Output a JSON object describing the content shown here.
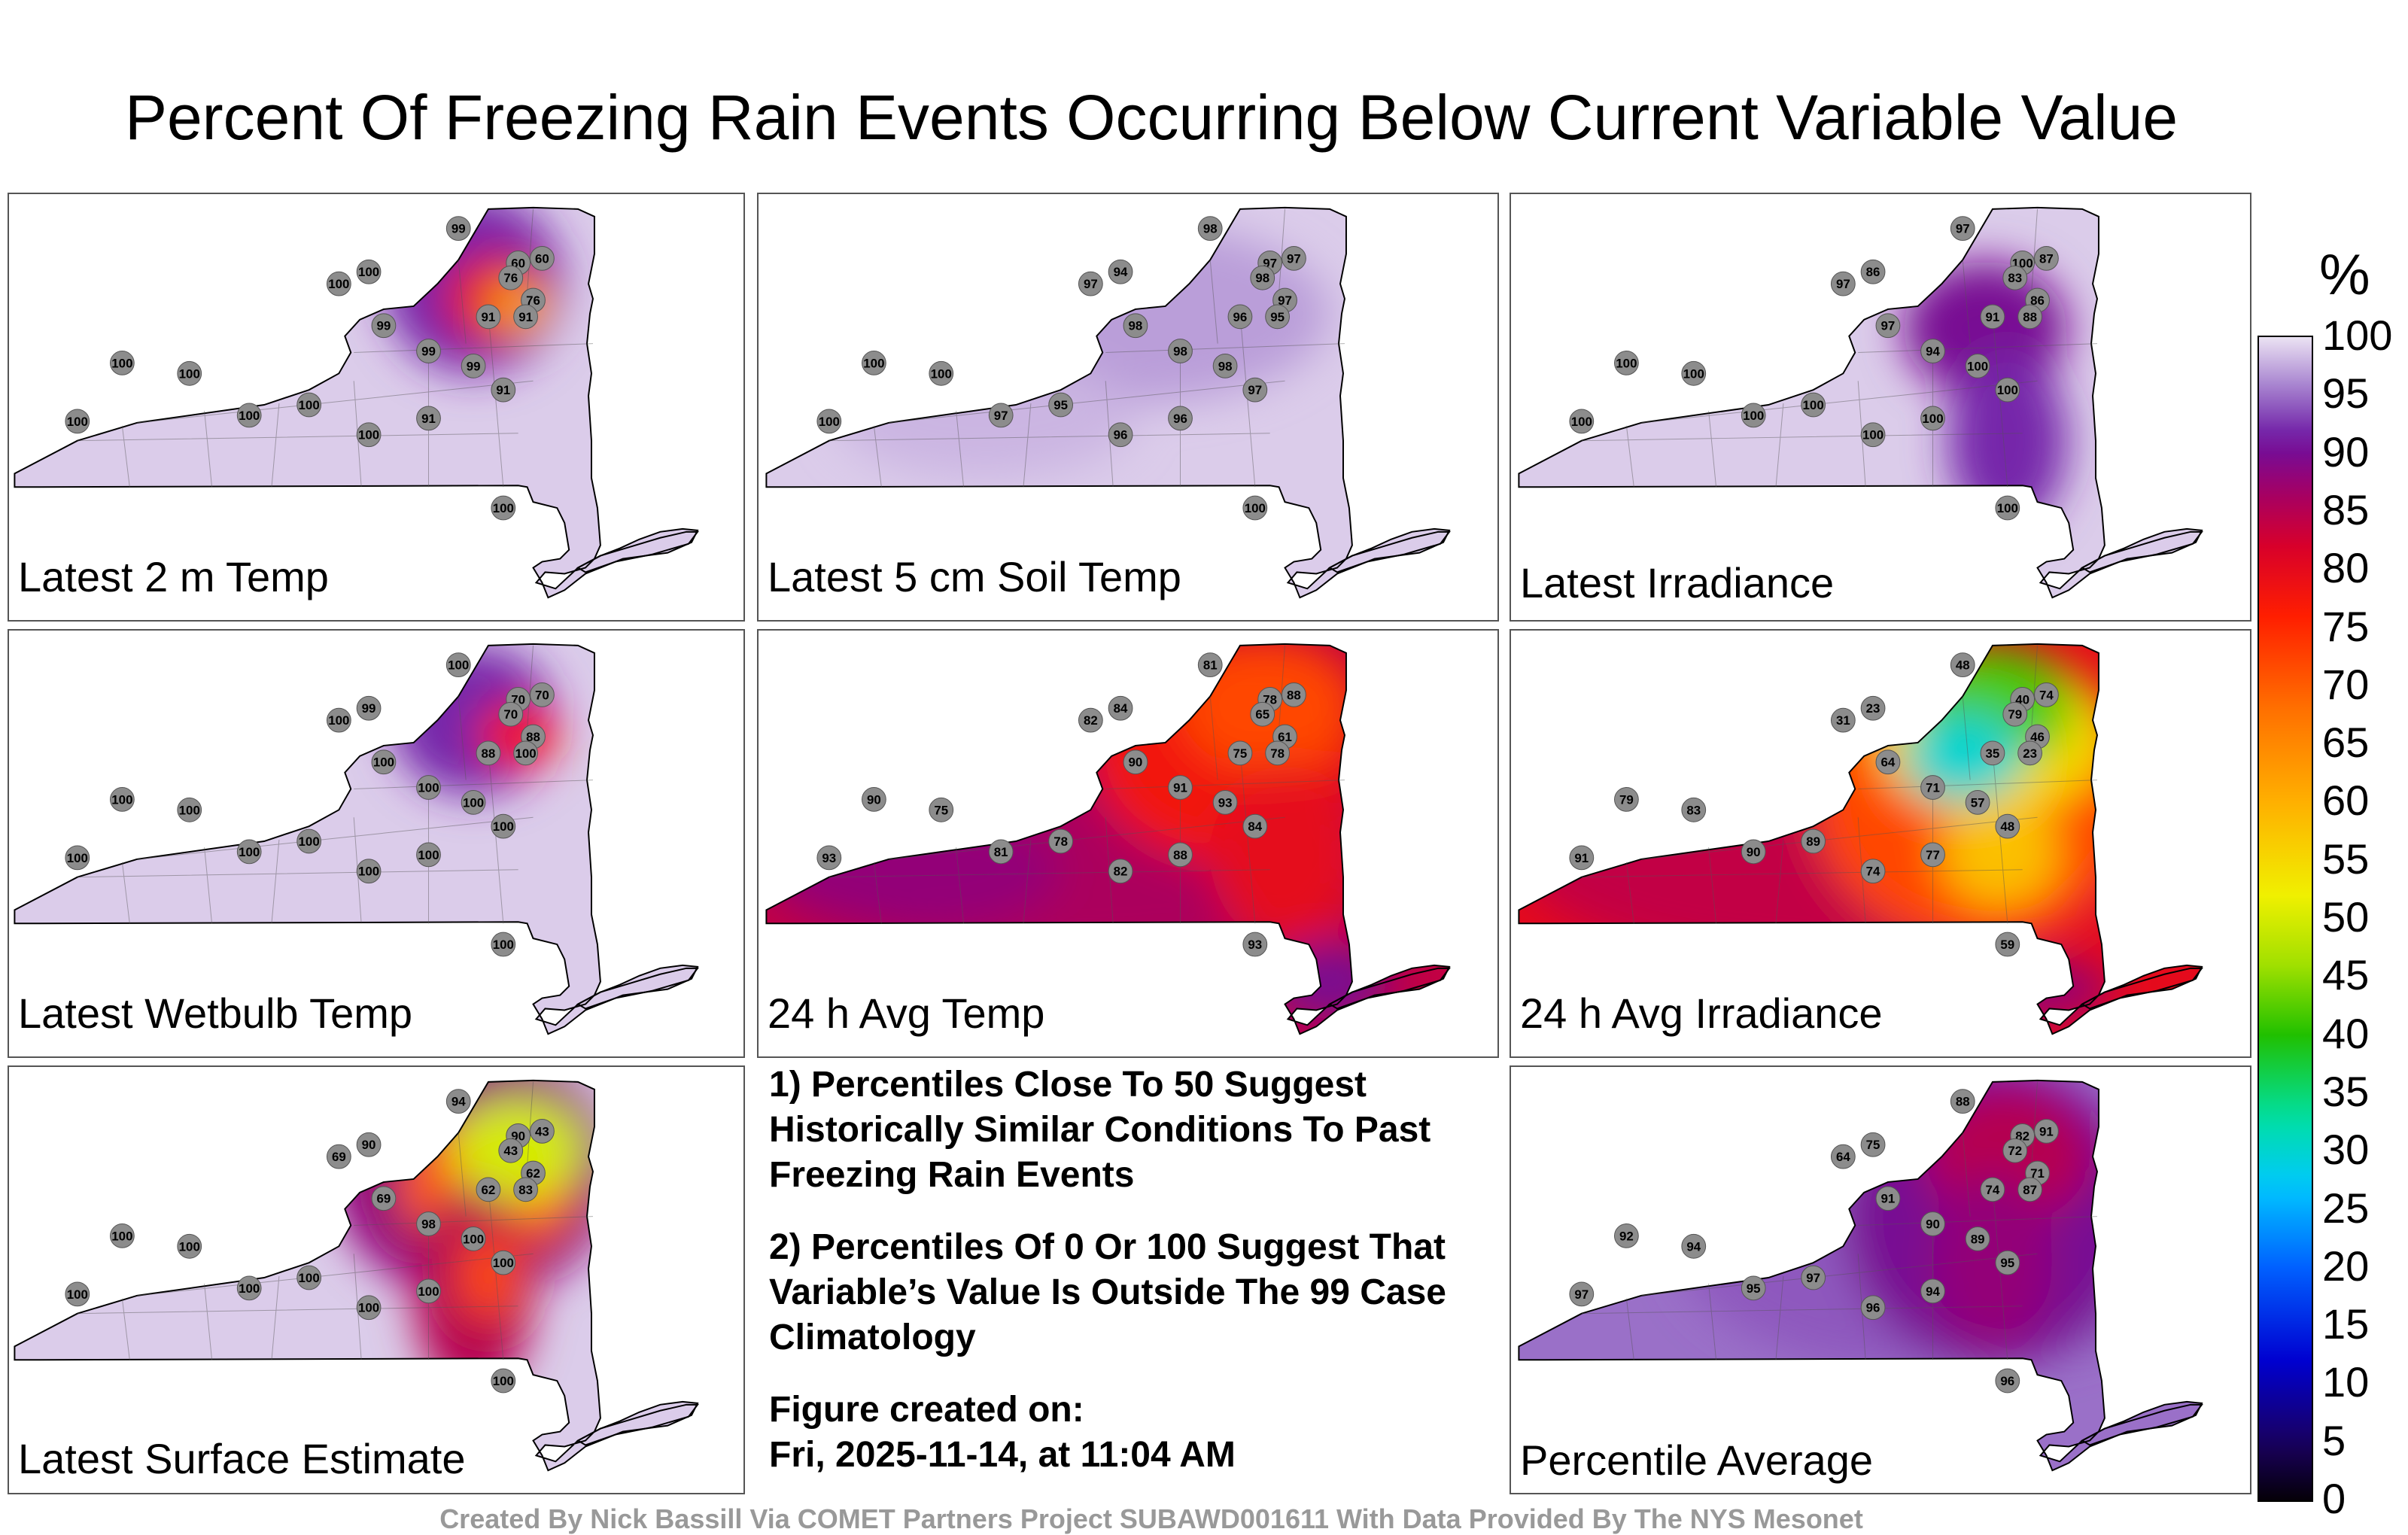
{
  "title": "Percent Of Freezing Rain Events Occurring Below Current Variable Value",
  "panels": [
    {
      "label": "Latest 2 m Temp",
      "variant": "temp2m",
      "stations": [
        "99",
        "60",
        "60",
        "76",
        "76",
        "91",
        "91",
        "100",
        "100",
        "99",
        "99",
        "99",
        "91",
        "91",
        "100",
        "100",
        "100",
        "100",
        "100",
        "100",
        "100"
      ]
    },
    {
      "label": "Latest 5 cm Soil Temp",
      "variant": "soil",
      "stations": [
        "98",
        "97",
        "97",
        "98",
        "97",
        "96",
        "95",
        "94",
        "97",
        "98",
        "98",
        "98",
        "97",
        "96",
        "96",
        "95",
        "97",
        "100",
        "100",
        "100",
        "100"
      ]
    },
    {
      "label": "Latest Irradiance",
      "variant": "irr",
      "stations": [
        "97",
        "100",
        "87",
        "83",
        "86",
        "91",
        "88",
        "86",
        "97",
        "97",
        "94",
        "100",
        "100",
        "100",
        "100",
        "100",
        "100",
        "100",
        "100",
        "100",
        "100"
      ]
    },
    {
      "label": "Latest Wetbulb Temp",
      "variant": "wetbulb",
      "stations": [
        "100",
        "70",
        "70",
        "70",
        "88",
        "88",
        "100",
        "99",
        "100",
        "100",
        "100",
        "100",
        "100",
        "100",
        "100",
        "100",
        "100",
        "100",
        "100",
        "100",
        "100"
      ]
    },
    {
      "label": "24 h Avg Temp",
      "variant": "avgtemp",
      "stations": [
        "81",
        "78",
        "88",
        "65",
        "61",
        "75",
        "78",
        "84",
        "82",
        "90",
        "91",
        "93",
        "84",
        "88",
        "82",
        "78",
        "81",
        "75",
        "90",
        "93",
        "93"
      ]
    },
    {
      "label": "24 h Avg Irradiance",
      "variant": "avgirr",
      "stations": [
        "48",
        "40",
        "74",
        "79",
        "46",
        "35",
        "23",
        "23",
        "31",
        "64",
        "71",
        "57",
        "48",
        "77",
        "74",
        "89",
        "90",
        "83",
        "79",
        "91",
        "59"
      ]
    },
    {
      "label": "Latest Surface Estimate",
      "variant": "surface",
      "stations": [
        "94",
        "90",
        "43",
        "43",
        "62",
        "62",
        "83",
        "90",
        "69",
        "69",
        "98",
        "100",
        "100",
        "100",
        "100",
        "100",
        "100",
        "100",
        "100",
        "100",
        "100"
      ]
    },
    {
      "label": "Percentile Average",
      "variant": "avg",
      "stations": [
        "88",
        "82",
        "91",
        "72",
        "71",
        "74",
        "87",
        "75",
        "64",
        "91",
        "90",
        "89",
        "95",
        "94",
        "96",
        "97",
        "95",
        "94",
        "92",
        "97",
        "96"
      ]
    }
  ],
  "notes": {
    "note1": "1) Percentiles Close To 50 Suggest Historically Similar Conditions To Past Freezing Rain Events",
    "note2": "2) Percentiles Of 0 Or 100 Suggest That Variable’s Value Is Outside The 99 Case Climatology",
    "created_label": "Figure created on:",
    "created_date": "Fri, 2025-11-14, at 11:04 AM"
  },
  "colorbar": {
    "unit": "%",
    "ticks": [
      "100",
      "95",
      "90",
      "85",
      "80",
      "75",
      "70",
      "65",
      "60",
      "55",
      "50",
      "45",
      "40",
      "35",
      "30",
      "25",
      "20",
      "15",
      "10",
      "5",
      "0"
    ]
  },
  "credit": "Created By Nick Bassill Via COMET Partners Project SUBAWD001611 With Data Provided By The NYS Mesonet"
}
